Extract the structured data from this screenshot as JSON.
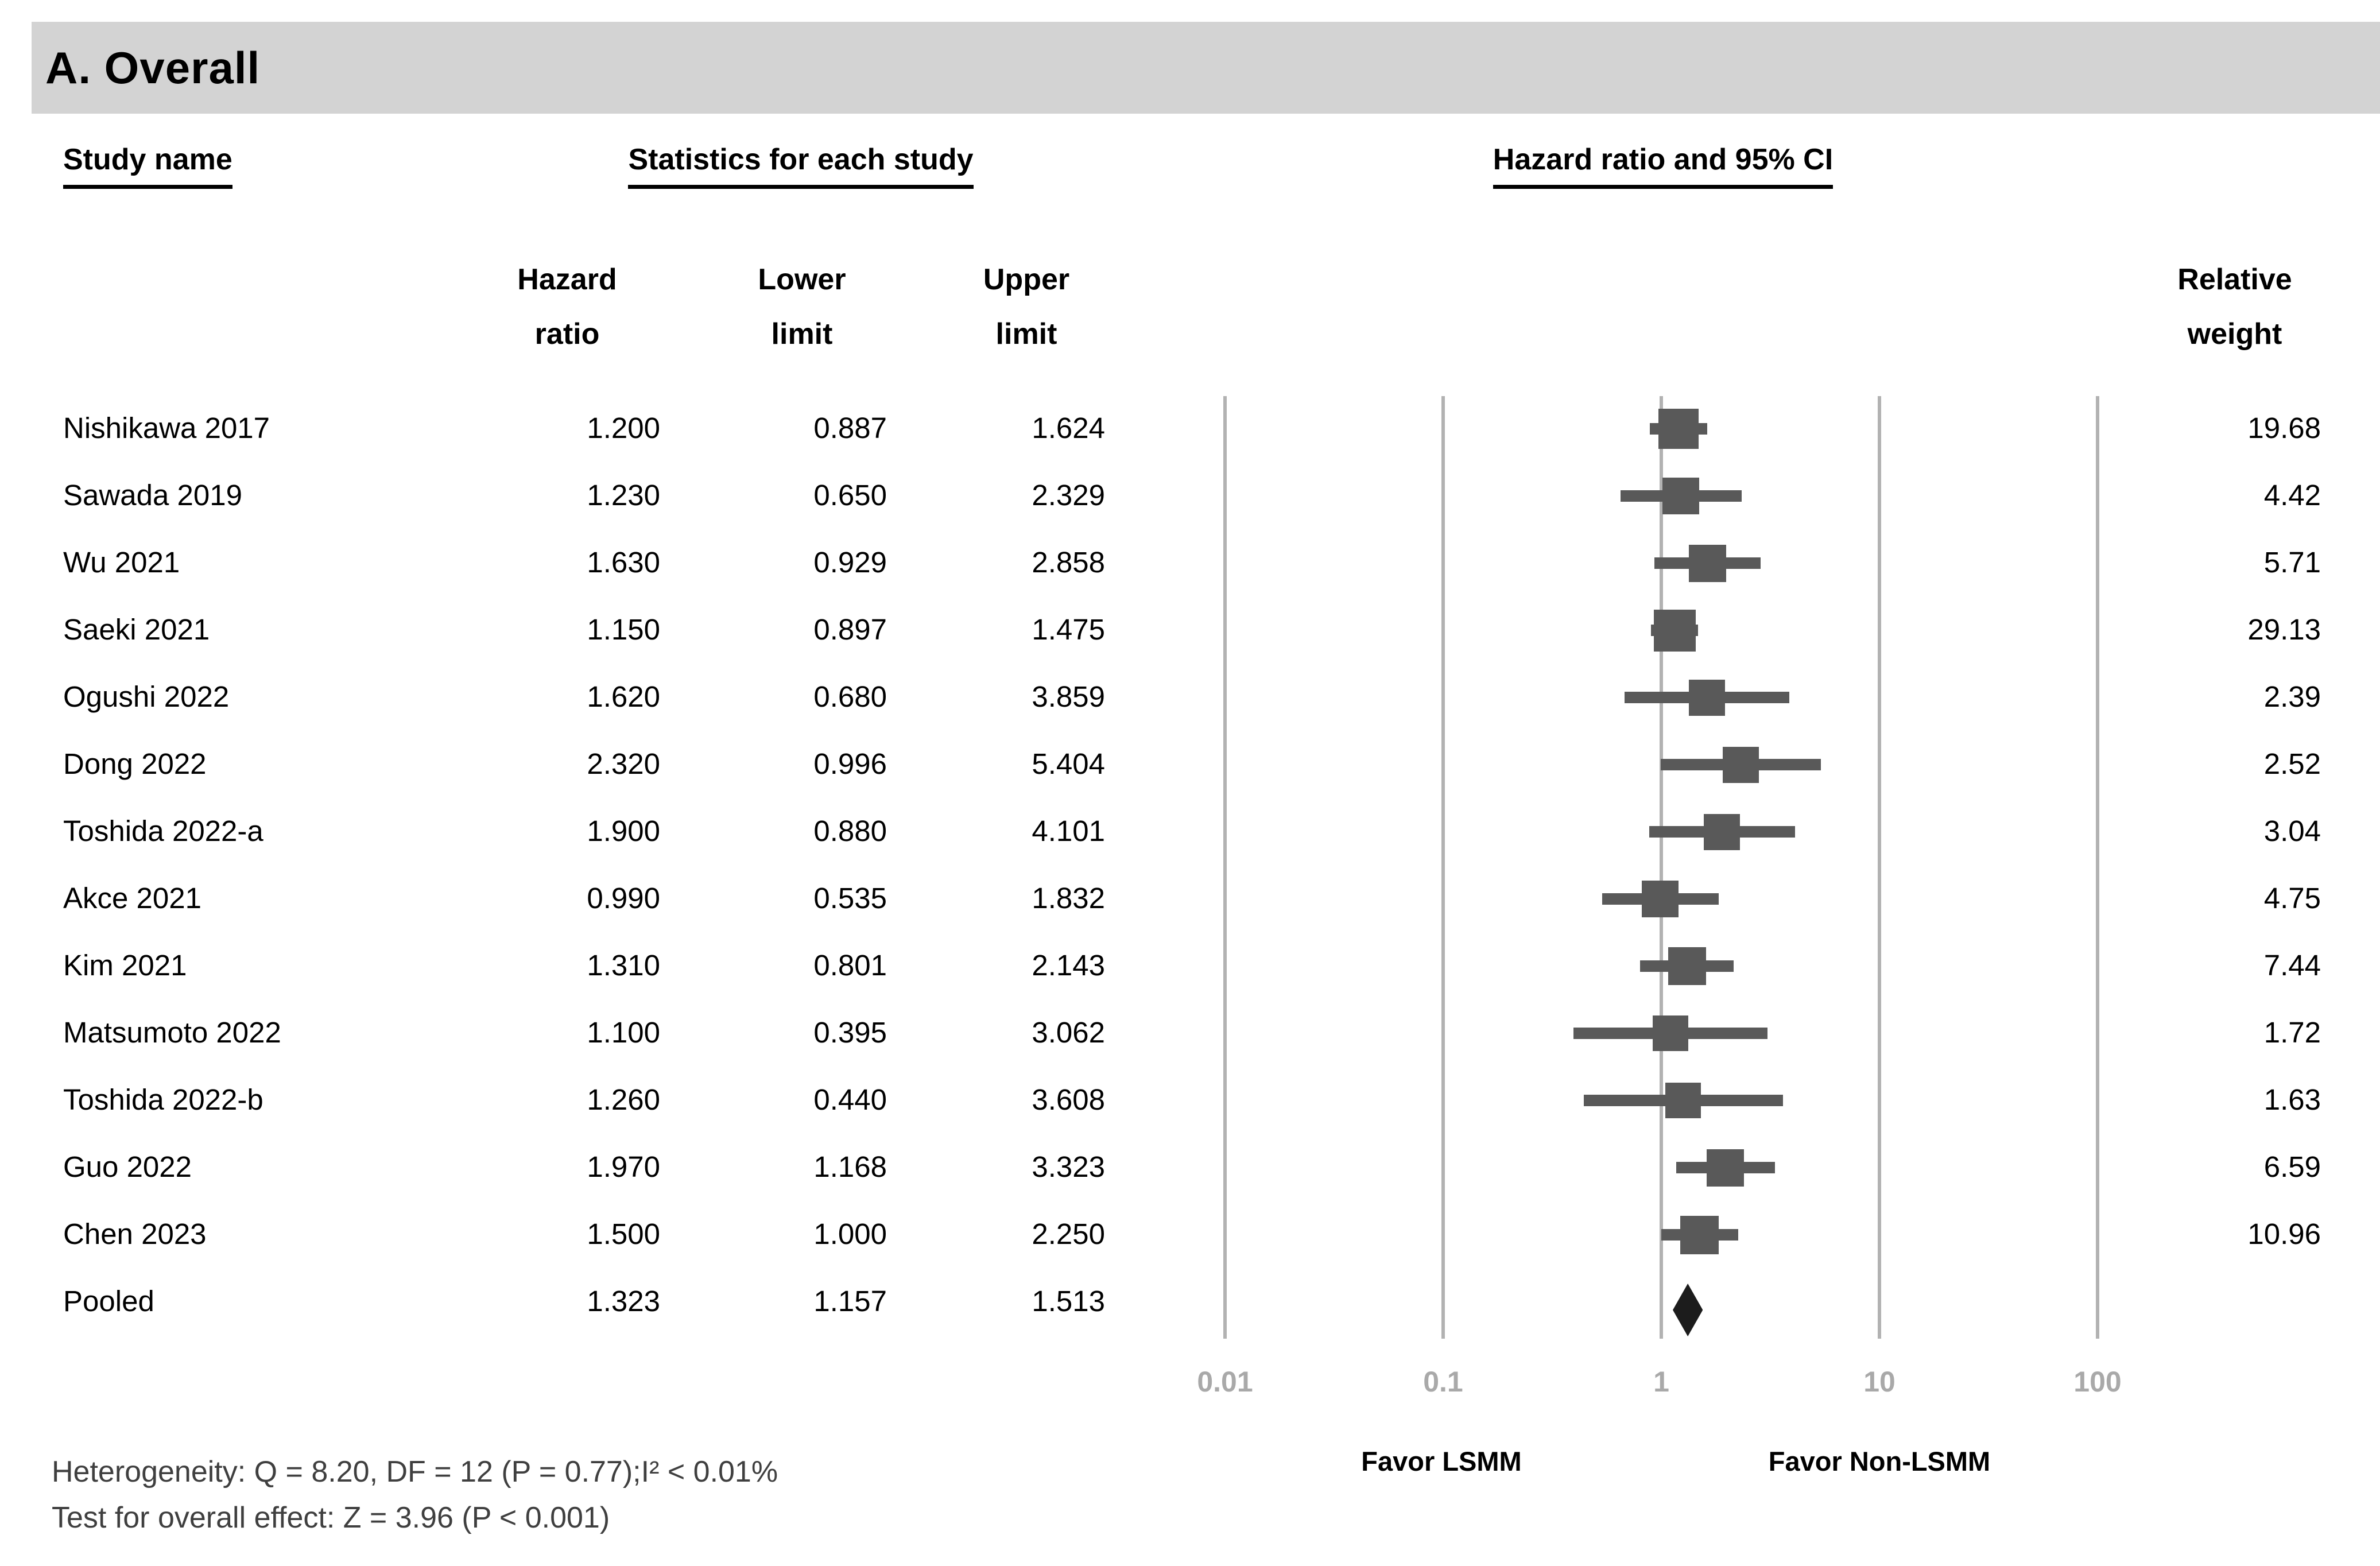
{
  "title": "A. Overall",
  "table": {
    "study_col": "Study name",
    "stats_col": "Statistics for each study",
    "plot_col": "Hazard ratio and 95% CI",
    "hazard_line1": "Hazard",
    "hazard_line2": "ratio",
    "lower_line1": "Lower",
    "lower_line2": "limit",
    "upper_line1": "Upper",
    "upper_line2": "limit",
    "weight_line1": "Relative",
    "weight_line2": "weight"
  },
  "chart_data": {
    "type": "forest",
    "scale": "log",
    "xlim": [
      0.01,
      100
    ],
    "x_ticks": [
      "0.01",
      "0.1",
      "1",
      "10",
      "100"
    ],
    "x_tick_values": [
      0.01,
      0.1,
      1,
      10,
      100
    ],
    "grid": true,
    "studies": [
      {
        "name": "Nishikawa 2017",
        "hr": "1.200",
        "lower": "0.887",
        "upper": "1.624",
        "weight": "19.68"
      },
      {
        "name": "Sawada 2019",
        "hr": "1.230",
        "lower": "0.650",
        "upper": "2.329",
        "weight": "4.42"
      },
      {
        "name": "Wu 2021",
        "hr": "1.630",
        "lower": "0.929",
        "upper": "2.858",
        "weight": "5.71"
      },
      {
        "name": "Saeki 2021",
        "hr": "1.150",
        "lower": "0.897",
        "upper": "1.475",
        "weight": "29.13"
      },
      {
        "name": "Ogushi 2022",
        "hr": "1.620",
        "lower": "0.680",
        "upper": "3.859",
        "weight": "2.39"
      },
      {
        "name": "Dong 2022",
        "hr": "2.320",
        "lower": "0.996",
        "upper": "5.404",
        "weight": "2.52"
      },
      {
        "name": "Toshida 2022-a",
        "hr": "1.900",
        "lower": "0.880",
        "upper": "4.101",
        "weight": "3.04"
      },
      {
        "name": "Akce 2021",
        "hr": "0.990",
        "lower": "0.535",
        "upper": "1.832",
        "weight": "4.75"
      },
      {
        "name": "Kim 2021",
        "hr": "1.310",
        "lower": "0.801",
        "upper": "2.143",
        "weight": "7.44"
      },
      {
        "name": "Matsumoto 2022",
        "hr": "1.100",
        "lower": "0.395",
        "upper": "3.062",
        "weight": "1.72"
      },
      {
        "name": "Toshida 2022-b",
        "hr": "1.260",
        "lower": "0.440",
        "upper": "3.608",
        "weight": "1.63"
      },
      {
        "name": "Guo 2022",
        "hr": "1.970",
        "lower": "1.168",
        "upper": "3.323",
        "weight": "6.59"
      },
      {
        "name": "Chen 2023",
        "hr": "1.500",
        "lower": "1.000",
        "upper": "2.250",
        "weight": "10.96"
      }
    ],
    "pooled": {
      "name": "Pooled",
      "hr": "1.323",
      "lower": "1.157",
      "upper": "1.513",
      "weight": ""
    },
    "favor_left": "Favor LSMM",
    "favor_right": "Favor Non-LSMM"
  },
  "footer": {
    "line1": "Heterogeneity: Q = 8.20, DF = 12 (P = 0.77);I² < 0.01%",
    "line2": "Test for overall effect: Z = 3.96 (P < 0.001)"
  },
  "colors": {
    "banner_bg": "#d3d3d3",
    "marker": "#595959",
    "ci_line": "#595959",
    "gridline": "#b2b2b2",
    "tick_label": "#a9a9a9",
    "diamond": "#1c1c1c",
    "footer_text": "#3f3f3f"
  }
}
